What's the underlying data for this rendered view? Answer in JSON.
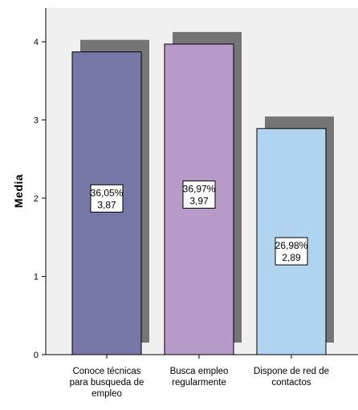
{
  "chart_data": {
    "type": "bar",
    "ylabel": "Media",
    "xlabel": "",
    "ylim": [
      0,
      4.5
    ],
    "yticks": [
      0,
      1,
      2,
      3,
      4
    ],
    "grid": false,
    "bar_shadow": true,
    "categories": [
      [
        "Conoce técnicas",
        "para busqueda de",
        "empleo"
      ],
      [
        "Busca empleo",
        "regularmente"
      ],
      [
        "Dispone de red de",
        "contactos"
      ]
    ],
    "values": [
      3.87,
      3.97,
      2.89
    ],
    "percentages": [
      "36,05%",
      "36,97%",
      "26,98%"
    ],
    "value_labels": [
      "3,87",
      "3,97",
      "2,89"
    ],
    "colors": [
      "#7878a8",
      "#b89ac8",
      "#b0d4f0"
    ],
    "shadow_color": "#757575",
    "plot_background": "#f0f0f0"
  }
}
